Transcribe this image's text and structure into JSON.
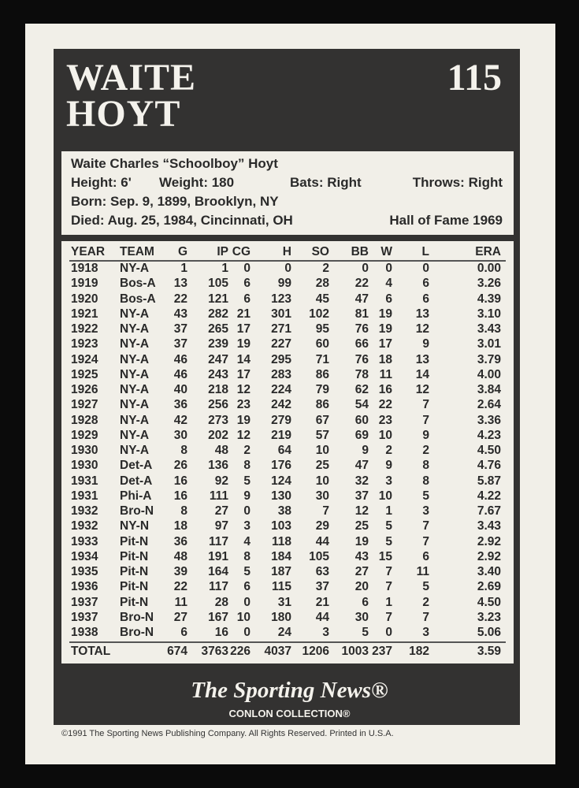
{
  "header": {
    "first_name": "WAITE",
    "last_name": "HOYT",
    "card_number": "115"
  },
  "bio": {
    "full_name": "Waite Charles “Schoolboy” Hoyt",
    "height": "Height: 6'",
    "weight": "Weight: 180",
    "bats": "Bats: Right",
    "throws": "Throws: Right",
    "born": "Born:  Sep. 9, 1899, Brooklyn, NY",
    "died": "Died:  Aug. 25, 1984, Cincinnati, OH",
    "hof": "Hall of Fame 1969"
  },
  "stats": {
    "columns": [
      "YEAR",
      "TEAM",
      "G",
      "IP",
      "CG",
      "H",
      "SO",
      "BB",
      "W",
      "L",
      "ERA"
    ],
    "rows": [
      [
        "1918",
        "NY-A",
        "1",
        "1",
        "0",
        "0",
        "2",
        "0",
        "0",
        "0",
        "0.00"
      ],
      [
        "1919",
        "Bos-A",
        "13",
        "105",
        "6",
        "99",
        "28",
        "22",
        "4",
        "6",
        "3.26"
      ],
      [
        "1920",
        "Bos-A",
        "22",
        "121",
        "6",
        "123",
        "45",
        "47",
        "6",
        "6",
        "4.39"
      ],
      [
        "1921",
        "NY-A",
        "43",
        "282",
        "21",
        "301",
        "102",
        "81",
        "19",
        "13",
        "3.10"
      ],
      [
        "1922",
        "NY-A",
        "37",
        "265",
        "17",
        "271",
        "95",
        "76",
        "19",
        "12",
        "3.43"
      ],
      [
        "1923",
        "NY-A",
        "37",
        "239",
        "19",
        "227",
        "60",
        "66",
        "17",
        "9",
        "3.01"
      ],
      [
        "1924",
        "NY-A",
        "46",
        "247",
        "14",
        "295",
        "71",
        "76",
        "18",
        "13",
        "3.79"
      ],
      [
        "1925",
        "NY-A",
        "46",
        "243",
        "17",
        "283",
        "86",
        "78",
        "11",
        "14",
        "4.00"
      ],
      [
        "1926",
        "NY-A",
        "40",
        "218",
        "12",
        "224",
        "79",
        "62",
        "16",
        "12",
        "3.84"
      ],
      [
        "1927",
        "NY-A",
        "36",
        "256",
        "23",
        "242",
        "86",
        "54",
        "22",
        "7",
        "2.64"
      ],
      [
        "1928",
        "NY-A",
        "42",
        "273",
        "19",
        "279",
        "67",
        "60",
        "23",
        "7",
        "3.36"
      ],
      [
        "1929",
        "NY-A",
        "30",
        "202",
        "12",
        "219",
        "57",
        "69",
        "10",
        "9",
        "4.23"
      ],
      [
        "1930",
        "NY-A",
        "8",
        "48",
        "2",
        "64",
        "10",
        "9",
        "2",
        "2",
        "4.50"
      ],
      [
        "1930",
        "Det-A",
        "26",
        "136",
        "8",
        "176",
        "25",
        "47",
        "9",
        "8",
        "4.76"
      ],
      [
        "1931",
        "Det-A",
        "16",
        "92",
        "5",
        "124",
        "10",
        "32",
        "3",
        "8",
        "5.87"
      ],
      [
        "1931",
        "Phi-A",
        "16",
        "111",
        "9",
        "130",
        "30",
        "37",
        "10",
        "5",
        "4.22"
      ],
      [
        "1932",
        "Bro-N",
        "8",
        "27",
        "0",
        "38",
        "7",
        "12",
        "1",
        "3",
        "7.67"
      ],
      [
        "1932",
        "NY-N",
        "18",
        "97",
        "3",
        "103",
        "29",
        "25",
        "5",
        "7",
        "3.43"
      ],
      [
        "1933",
        "Pit-N",
        "36",
        "117",
        "4",
        "118",
        "44",
        "19",
        "5",
        "7",
        "2.92"
      ],
      [
        "1934",
        "Pit-N",
        "48",
        "191",
        "8",
        "184",
        "105",
        "43",
        "15",
        "6",
        "2.92"
      ],
      [
        "1935",
        "Pit-N",
        "39",
        "164",
        "5",
        "187",
        "63",
        "27",
        "7",
        "11",
        "3.40"
      ],
      [
        "1936",
        "Pit-N",
        "22",
        "117",
        "6",
        "115",
        "37",
        "20",
        "7",
        "5",
        "2.69"
      ],
      [
        "1937",
        "Pit-N",
        "11",
        "28",
        "0",
        "31",
        "21",
        "6",
        "1",
        "2",
        "4.50"
      ],
      [
        "1937",
        "Bro-N",
        "27",
        "167",
        "10",
        "180",
        "44",
        "30",
        "7",
        "7",
        "3.23"
      ],
      [
        "1938",
        "Bro-N",
        "6",
        "16",
        "0",
        "24",
        "3",
        "5",
        "0",
        "3",
        "5.06"
      ]
    ],
    "total": [
      "TOTAL",
      "",
      "674",
      "3763",
      "226",
      "4037",
      "1206",
      "1003",
      "237",
      "182",
      "3.59"
    ]
  },
  "footer": {
    "logo": "The Sporting News®",
    "collection": "CONLON COLLECTION®",
    "copyright": "©1991 The Sporting News Publishing Company. All Rights Reserved. Printed in U.S.A."
  }
}
